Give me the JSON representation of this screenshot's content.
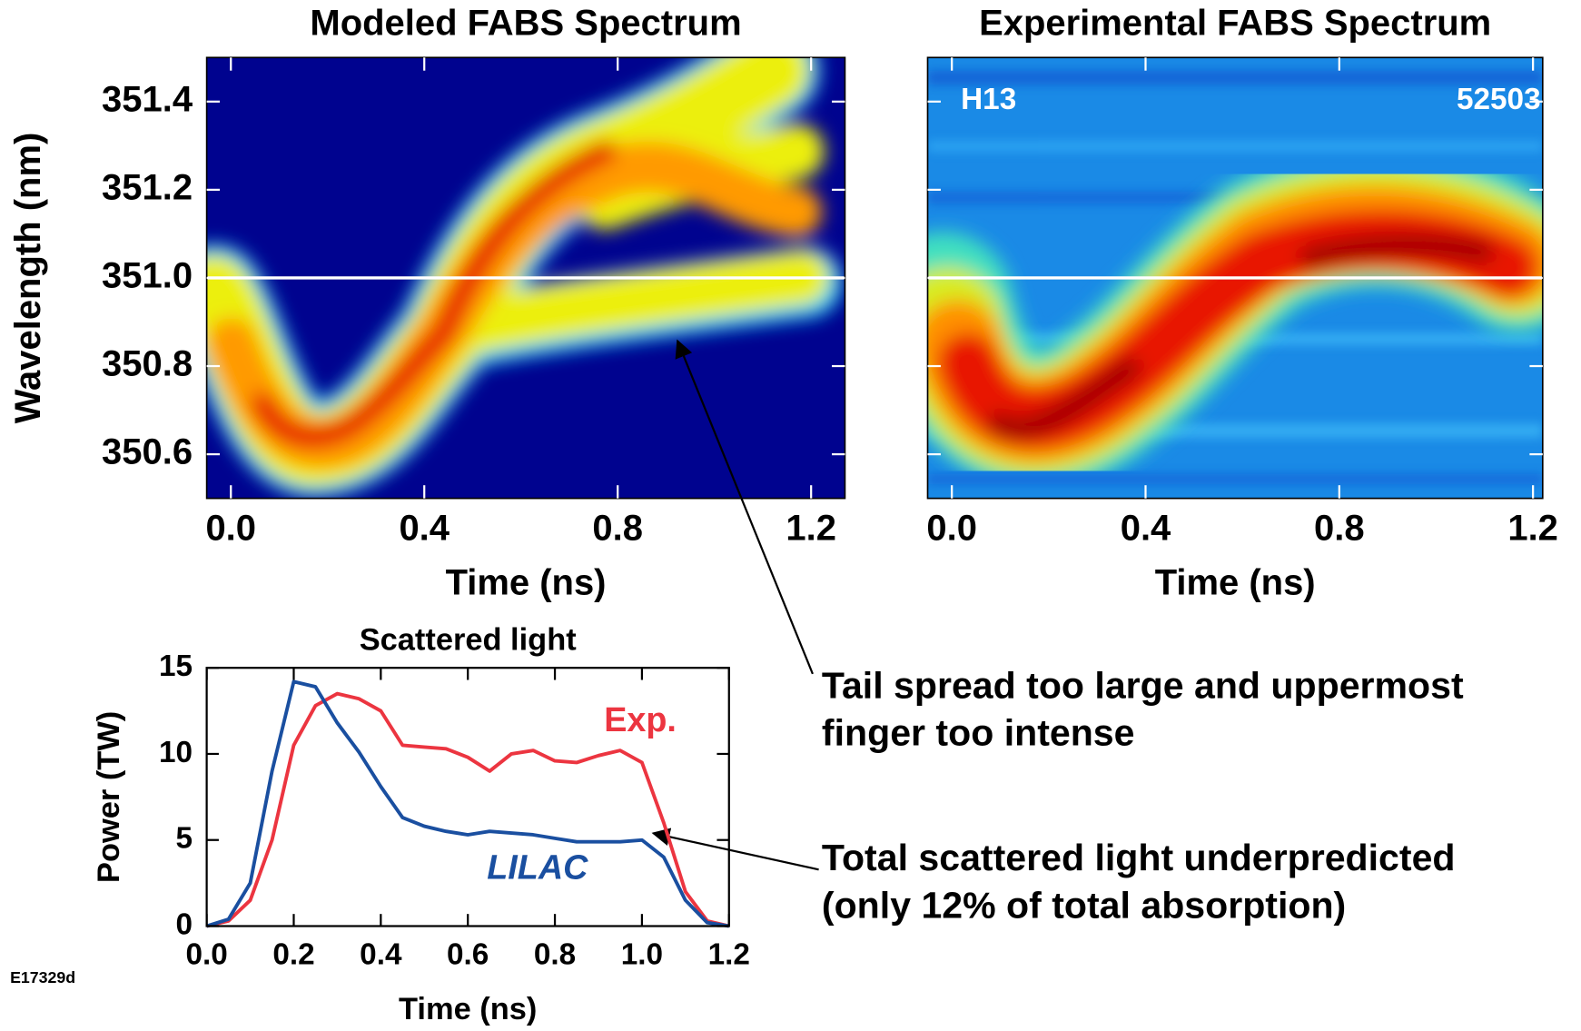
{
  "chart_data": [
    {
      "type": "heatmap",
      "title": "Modeled FABS Spectrum",
      "x_label": "Time (ns)",
      "y_label": "Wavelength (nm)",
      "xlim": [
        -0.05,
        1.27
      ],
      "ylim": [
        350.5,
        351.5
      ],
      "xticks": [
        {
          "value": 0,
          "label": "0.0"
        },
        0.4,
        0.8,
        1.2
      ],
      "yticks": [
        350.6,
        350.8,
        {
          "value": 351,
          "label": "351.0"
        },
        351.2,
        351.4
      ],
      "reference_line": 351.0
    },
    {
      "type": "heatmap",
      "title": "Experimental FABS Spectrum",
      "x_label": "Time (ns)",
      "xlim": [
        -0.05,
        1.22
      ],
      "ylim": [
        350.5,
        351.5
      ],
      "xticks": [
        {
          "value": 0,
          "label": "0.0"
        },
        0.4,
        0.8,
        1.2
      ],
      "yticks": [
        350.6,
        350.8,
        351,
        351.2,
        351.4
      ],
      "reference_line": 351.0,
      "annotations": [
        "H13",
        "52503"
      ]
    },
    {
      "type": "line",
      "title": "Scattered light",
      "x_label": "Time (ns)",
      "y_label": "Power (TW)",
      "xlim": [
        0,
        1.2
      ],
      "ylim": [
        0,
        15
      ],
      "xticks": [
        {
          "value": 0,
          "label": "0.0"
        },
        0.2,
        0.4,
        0.6,
        0.8,
        {
          "value": 1,
          "label": "1.0"
        },
        1.2
      ],
      "yticks": [
        0,
        5,
        10,
        15
      ],
      "x": [
        0,
        0.05,
        0.1,
        0.15,
        0.2,
        0.25,
        0.3,
        0.35,
        0.4,
        0.45,
        0.5,
        0.55,
        0.6,
        0.65,
        0.7,
        0.75,
        0.8,
        0.85,
        0.9,
        0.95,
        1.0,
        1.05,
        1.1,
        1.15,
        1.2
      ],
      "series": [
        {
          "name": "Exp.",
          "color": "#ec3540",
          "values": [
            0,
            0.3,
            1.5,
            5,
            10.5,
            12.8,
            13.5,
            13.2,
            12.5,
            10.5,
            10.4,
            10.3,
            9.8,
            9.0,
            10.0,
            10.2,
            9.6,
            9.5,
            9.9,
            10.2,
            9.5,
            6,
            2,
            0.3,
            0
          ]
        },
        {
          "name": "LILAC",
          "color": "#1a4fa0",
          "values": [
            0,
            0.4,
            2.5,
            9,
            14.2,
            13.9,
            11.8,
            10.1,
            8.1,
            6.3,
            5.8,
            5.5,
            5.3,
            5.5,
            5.4,
            5.3,
            5.1,
            4.9,
            4.9,
            4.9,
            5.0,
            4.0,
            1.5,
            0.2,
            0
          ]
        }
      ]
    }
  ],
  "notes": [
    {
      "lines": [
        "Tail spread too large and uppermost",
        "finger too intense"
      ]
    },
    {
      "lines": [
        "Total scattered light underpredicted",
        "(only 12% of total absorption)"
      ]
    }
  ],
  "figure_id": "E17329d"
}
